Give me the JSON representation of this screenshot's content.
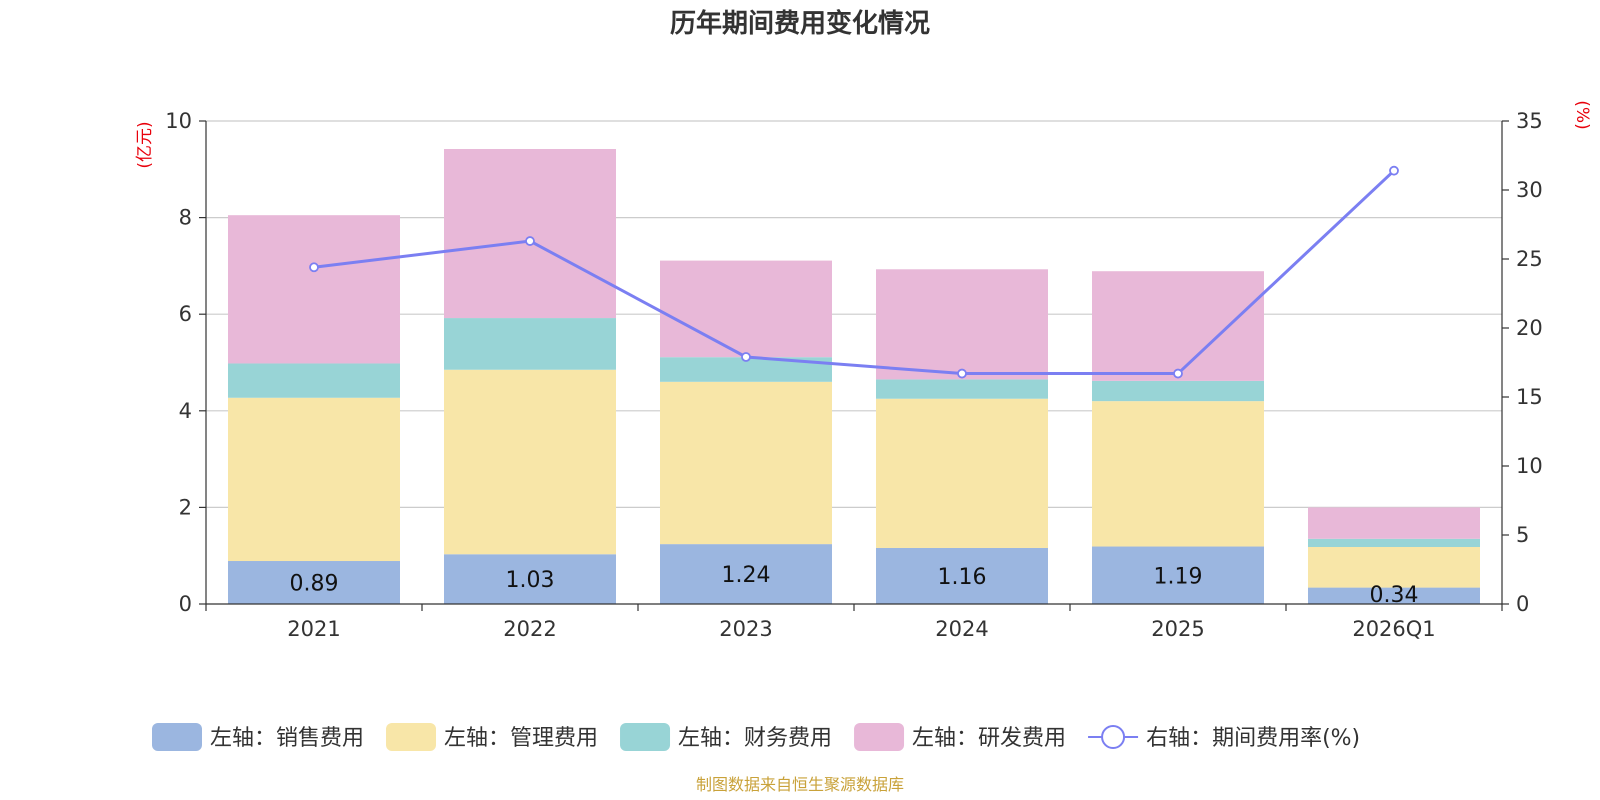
{
  "chart_data": {
    "type": "bar",
    "title": "历年期间费用变化情况",
    "categories": [
      "2021",
      "2022",
      "2023",
      "2024",
      "2025",
      "2026Q1"
    ],
    "left_axis": {
      "unit": "(亿元)",
      "ylim": [
        0,
        10
      ],
      "ticks": [
        "0",
        "2",
        "4",
        "6",
        "8",
        "10"
      ]
    },
    "right_axis": {
      "unit": "(%)",
      "ylim": [
        0,
        35
      ],
      "ticks": [
        "0",
        "5",
        "10",
        "15",
        "20",
        "25",
        "30",
        "35"
      ]
    },
    "series": [
      {
        "name": "左轴：销售费用",
        "color": "#9bb6e0",
        "values": [
          0.89,
          1.03,
          1.24,
          1.16,
          1.19,
          0.34
        ]
      },
      {
        "name": "左轴：管理费用",
        "color": "#f8e6a8",
        "values": [
          3.38,
          3.82,
          3.36,
          3.09,
          3.01,
          0.84
        ]
      },
      {
        "name": "左轴：财务费用",
        "color": "#98d4d6",
        "values": [
          0.71,
          1.07,
          0.51,
          0.4,
          0.42,
          0.17
        ]
      },
      {
        "name": "左轴：研发费用",
        "color": "#e8b8d8",
        "values": [
          3.07,
          3.5,
          2.0,
          2.28,
          2.27,
          0.65
        ]
      }
    ],
    "bar_labels": [
      "0.89",
      "1.03",
      "1.24",
      "1.16",
      "1.19",
      "0.34"
    ],
    "line": {
      "name": "右轴：期间费用率(%)",
      "color": "#7b7ff2",
      "values": [
        24.4,
        26.3,
        17.9,
        16.7,
        16.7,
        31.4
      ]
    },
    "grid": true,
    "legend_position": "bottom"
  },
  "footer": {
    "source": "制图数据来自恒生聚源数据库"
  }
}
